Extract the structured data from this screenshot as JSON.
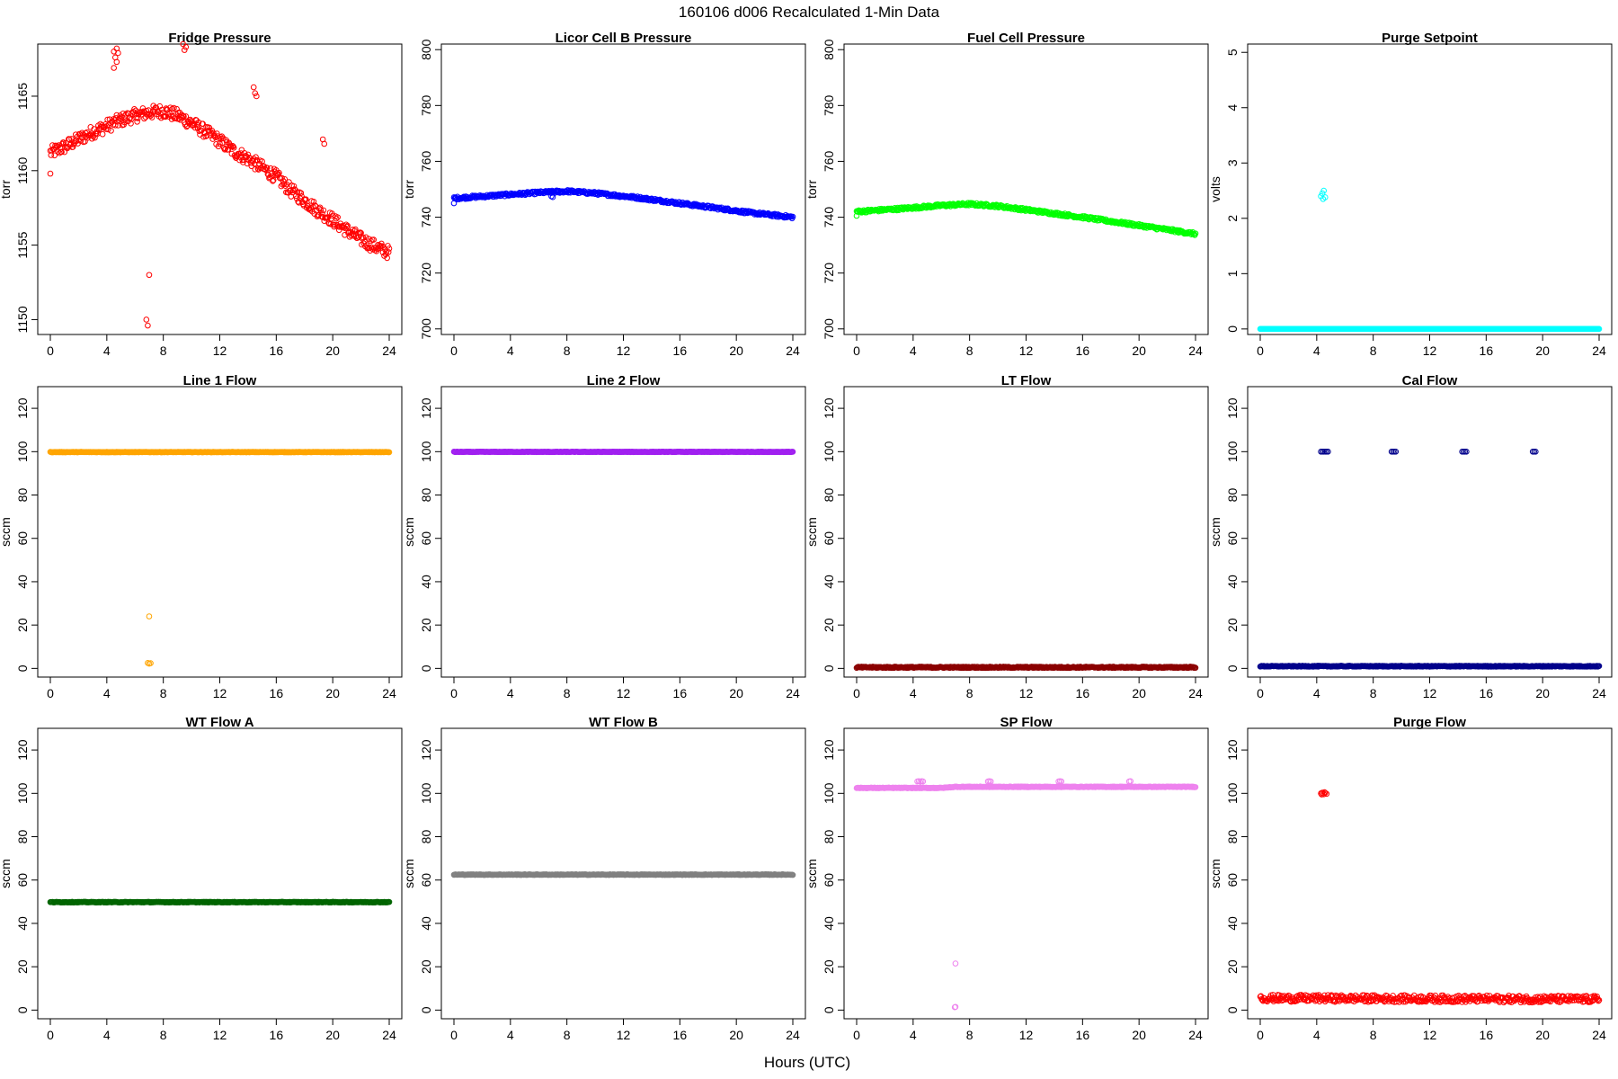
{
  "figure": {
    "title": "160106   d006   Recalculated 1-Min Data",
    "xlabel": "Hours (UTC)"
  },
  "chart_data": [
    {
      "type": "scatter",
      "title": "Fridge Pressure",
      "ylabel": "torr",
      "color": "#ff0000",
      "xlim": [
        0,
        24
      ],
      "xticks": [
        0,
        4,
        8,
        12,
        16,
        20,
        24
      ],
      "ylim": [
        1149,
        1168.5
      ],
      "yticks": [
        1150,
        1155,
        1160,
        1165
      ],
      "base": [
        [
          0,
          1161.2
        ],
        [
          1,
          1161.6
        ],
        [
          2,
          1162.1
        ],
        [
          3,
          1162.6
        ],
        [
          4,
          1163.0
        ],
        [
          5,
          1163.4
        ],
        [
          6,
          1163.7
        ],
        [
          7,
          1163.9
        ],
        [
          8,
          1164.0
        ],
        [
          9,
          1163.7
        ],
        [
          10,
          1163.2
        ],
        [
          11,
          1162.6
        ],
        [
          12,
          1162.0
        ],
        [
          13,
          1161.3
        ],
        [
          14,
          1160.8
        ],
        [
          15,
          1160.2
        ],
        [
          16,
          1159.6
        ],
        [
          17,
          1158.7
        ],
        [
          18,
          1158.0
        ],
        [
          19,
          1157.3
        ],
        [
          20,
          1156.7
        ],
        [
          21,
          1156.0
        ],
        [
          22,
          1155.4
        ],
        [
          23,
          1154.9
        ],
        [
          24,
          1154.5
        ]
      ],
      "jitter": 0.45,
      "outliers": [
        [
          0.0,
          1159.8
        ],
        [
          4.5,
          1168.0
        ],
        [
          4.6,
          1167.6
        ],
        [
          4.7,
          1167.3
        ],
        [
          4.8,
          1167.9
        ],
        [
          4.5,
          1166.9
        ],
        [
          4.7,
          1168.2
        ],
        [
          9.4,
          1168.5
        ],
        [
          9.5,
          1168.1
        ],
        [
          9.6,
          1168.3
        ],
        [
          14.4,
          1165.6
        ],
        [
          14.5,
          1165.2
        ],
        [
          14.6,
          1165.0
        ],
        [
          19.3,
          1162.1
        ],
        [
          19.4,
          1161.8
        ],
        [
          6.8,
          1150.0
        ],
        [
          6.9,
          1149.6
        ],
        [
          7.0,
          1153.0
        ]
      ]
    },
    {
      "type": "scatter",
      "title": "Licor Cell B Pressure",
      "ylabel": "torr",
      "color": "#0000ff",
      "xlim": [
        0,
        24
      ],
      "xticks": [
        0,
        4,
        8,
        12,
        16,
        20,
        24
      ],
      "ylim": [
        698,
        802
      ],
      "yticks": [
        700,
        720,
        740,
        760,
        780,
        800
      ],
      "base": [
        [
          0,
          746.8
        ],
        [
          3,
          747.8
        ],
        [
          6,
          748.8
        ],
        [
          8,
          749.3
        ],
        [
          10,
          748.6
        ],
        [
          13,
          747.0
        ],
        [
          16,
          745.0
        ],
        [
          19,
          743.0
        ],
        [
          21,
          741.6
        ],
        [
          24,
          740.0
        ]
      ],
      "jitter": 0.5,
      "outliers": [
        [
          0.0,
          745.0
        ],
        [
          6.9,
          747.5
        ],
        [
          7.0,
          747.2
        ]
      ]
    },
    {
      "type": "scatter",
      "title": "Fuel Cell Pressure",
      "ylabel": "torr",
      "color": "#00ff00",
      "xlim": [
        0,
        24
      ],
      "xticks": [
        0,
        4,
        8,
        12,
        16,
        20,
        24
      ],
      "ylim": [
        698,
        802
      ],
      "yticks": [
        700,
        720,
        740,
        760,
        780,
        800
      ],
      "base": [
        [
          0,
          742.0
        ],
        [
          3,
          743.0
        ],
        [
          6,
          744.2
        ],
        [
          8,
          744.7
        ],
        [
          10,
          744.0
        ],
        [
          13,
          742.0
        ],
        [
          16,
          740.0
        ],
        [
          19,
          737.8
        ],
        [
          21,
          736.3
        ],
        [
          24,
          734.0
        ]
      ],
      "jitter": 0.5,
      "outliers": [
        [
          0.0,
          740.5
        ]
      ]
    },
    {
      "type": "scatter",
      "title": "Purge Setpoint",
      "ylabel": "volts",
      "color": "#00ffff",
      "xlim": [
        0,
        24
      ],
      "xticks": [
        0,
        4,
        8,
        12,
        16,
        20,
        24
      ],
      "ylim": [
        -0.1,
        5.15
      ],
      "yticks": [
        0,
        1,
        2,
        3,
        4,
        5
      ],
      "base": [
        [
          0,
          0
        ],
        [
          24,
          0
        ]
      ],
      "jitter": 0.0,
      "outliers": [
        [
          4.3,
          2.4
        ],
        [
          4.4,
          2.45
        ],
        [
          4.5,
          2.5
        ],
        [
          4.6,
          2.38
        ],
        [
          4.45,
          2.35
        ]
      ]
    },
    {
      "type": "scatter",
      "title": "Line 1 Flow",
      "ylabel": "sccm",
      "color": "#ffa500",
      "xlim": [
        0,
        24
      ],
      "xticks": [
        0,
        4,
        8,
        12,
        16,
        20,
        24
      ],
      "ylim": [
        -4,
        130
      ],
      "yticks": [
        0,
        20,
        40,
        60,
        80,
        100,
        120
      ],
      "base": [
        [
          0,
          99.8
        ],
        [
          24,
          99.8
        ]
      ],
      "jitter": 0.1,
      "outliers": [
        [
          7.0,
          24.0
        ],
        [
          6.9,
          2.5
        ],
        [
          7.0,
          2.2
        ],
        [
          7.1,
          2.4
        ]
      ]
    },
    {
      "type": "scatter",
      "title": "Line 2 Flow",
      "ylabel": "sccm",
      "color": "#a020f0",
      "xlim": [
        0,
        24
      ],
      "xticks": [
        0,
        4,
        8,
        12,
        16,
        20,
        24
      ],
      "ylim": [
        -4,
        130
      ],
      "yticks": [
        0,
        20,
        40,
        60,
        80,
        100,
        120
      ],
      "base": [
        [
          0,
          99.9
        ],
        [
          24,
          99.9
        ]
      ],
      "jitter": 0.1,
      "outliers": []
    },
    {
      "type": "scatter",
      "title": "LT Flow",
      "ylabel": "sccm",
      "color": "#8b0000",
      "xlim": [
        0,
        24
      ],
      "xticks": [
        0,
        4,
        8,
        12,
        16,
        20,
        24
      ],
      "ylim": [
        -4,
        130
      ],
      "yticks": [
        0,
        20,
        40,
        60,
        80,
        100,
        120
      ],
      "base": [
        [
          0,
          0.5
        ],
        [
          24,
          0.5
        ]
      ],
      "jitter": 0.3,
      "outliers": []
    },
    {
      "type": "scatter",
      "title": "Cal Flow",
      "ylabel": "sccm",
      "color": "#00008b",
      "xlim": [
        0,
        24
      ],
      "xticks": [
        0,
        4,
        8,
        12,
        16,
        20,
        24
      ],
      "ylim": [
        -4,
        130
      ],
      "yticks": [
        0,
        20,
        40,
        60,
        80,
        100,
        120
      ],
      "base": [
        [
          0,
          1.0
        ],
        [
          24,
          1.0
        ]
      ],
      "jitter": 0.2,
      "outliers": [
        [
          4.3,
          100
        ],
        [
          4.4,
          100
        ],
        [
          4.5,
          100
        ],
        [
          4.6,
          100
        ],
        [
          4.7,
          100
        ],
        [
          4.8,
          100
        ],
        [
          9.3,
          100
        ],
        [
          9.4,
          100
        ],
        [
          9.5,
          100
        ],
        [
          9.6,
          100
        ],
        [
          14.3,
          100
        ],
        [
          14.4,
          100
        ],
        [
          14.5,
          100
        ],
        [
          14.6,
          100
        ],
        [
          19.3,
          100
        ],
        [
          19.4,
          100
        ],
        [
          19.5,
          100
        ]
      ]
    },
    {
      "type": "scatter",
      "title": "WT Flow A",
      "ylabel": "sccm",
      "color": "#006400",
      "xlim": [
        0,
        24
      ],
      "xticks": [
        0,
        4,
        8,
        12,
        16,
        20,
        24
      ],
      "ylim": [
        -4,
        130
      ],
      "yticks": [
        0,
        20,
        40,
        60,
        80,
        100,
        120
      ],
      "base": [
        [
          0,
          49.8
        ],
        [
          24,
          49.8
        ]
      ],
      "jitter": 0.15,
      "outliers": []
    },
    {
      "type": "scatter",
      "title": "WT Flow B",
      "ylabel": "sccm",
      "color": "#808080",
      "xlim": [
        0,
        24
      ],
      "xticks": [
        0,
        4,
        8,
        12,
        16,
        20,
        24
      ],
      "ylim": [
        -4,
        130
      ],
      "yticks": [
        0,
        20,
        40,
        60,
        80,
        100,
        120
      ],
      "base": [
        [
          0,
          62.5
        ],
        [
          24,
          62.5
        ]
      ],
      "jitter": 0.15,
      "outliers": []
    },
    {
      "type": "scatter",
      "title": "SP Flow",
      "ylabel": "sccm",
      "color": "#ee82ee",
      "xlim": [
        0,
        24
      ],
      "xticks": [
        0,
        4,
        8,
        12,
        16,
        20,
        24
      ],
      "ylim": [
        -4,
        130
      ],
      "yticks": [
        0,
        20,
        40,
        60,
        80,
        100,
        120
      ],
      "base": [
        [
          0,
          102.5
        ],
        [
          6,
          102.5
        ],
        [
          7,
          103.0
        ],
        [
          24,
          103.0
        ]
      ],
      "jitter": 0.15,
      "outliers": [
        [
          4.3,
          105.5
        ],
        [
          4.4,
          105.6
        ],
        [
          4.5,
          105.4
        ],
        [
          4.6,
          105.6
        ],
        [
          4.7,
          105.5
        ],
        [
          9.3,
          105.5
        ],
        [
          9.4,
          105.6
        ],
        [
          9.5,
          105.5
        ],
        [
          14.3,
          105.5
        ],
        [
          14.4,
          105.6
        ],
        [
          14.5,
          105.5
        ],
        [
          19.3,
          105.5
        ],
        [
          19.4,
          105.6
        ],
        [
          7.0,
          21.5
        ],
        [
          7.0,
          1.5
        ],
        [
          6.95,
          1.3
        ]
      ]
    },
    {
      "type": "scatter",
      "title": "Purge Flow",
      "ylabel": "sccm",
      "color": "#ff0000",
      "xlim": [
        0,
        24
      ],
      "xticks": [
        0,
        4,
        8,
        12,
        16,
        20,
        24
      ],
      "ylim": [
        -4,
        130
      ],
      "yticks": [
        0,
        20,
        40,
        60,
        80,
        100,
        120
      ],
      "base": [
        [
          0,
          5.5
        ],
        [
          24,
          5.0
        ]
      ],
      "jitter": 1.6,
      "outliers": [
        [
          4.3,
          100
        ],
        [
          4.4,
          100.3
        ],
        [
          4.5,
          99.6
        ],
        [
          4.6,
          100.2
        ],
        [
          4.7,
          99.8
        ],
        [
          4.35,
          99.5
        ],
        [
          4.55,
          100.5
        ]
      ]
    }
  ]
}
